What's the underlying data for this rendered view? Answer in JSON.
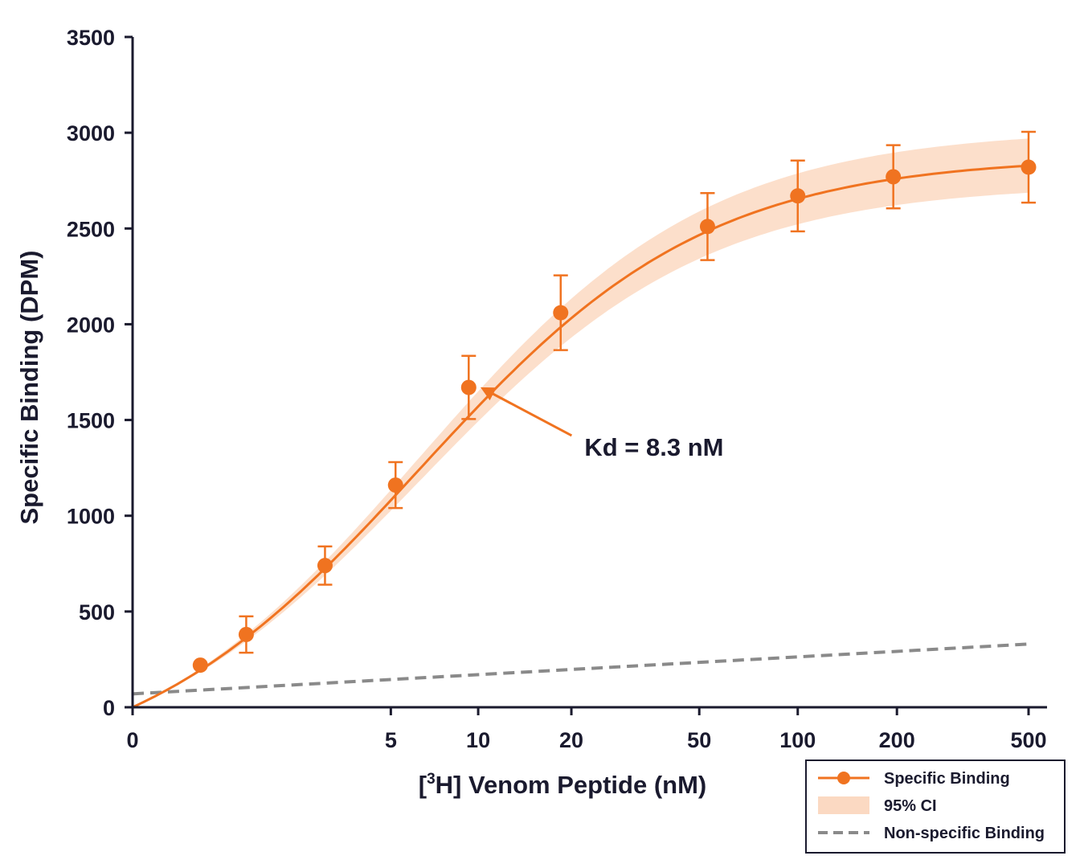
{
  "chart_data": {
    "type": "scatter",
    "xlabel_prefix": "[",
    "xlabel_sup": "3",
    "xlabel_rest": "H] Venom Peptide (nM)",
    "ylabel": "Specific Binding (DPM)",
    "x_scale": "log1p",
    "x_ticks": [
      0,
      5,
      10,
      20,
      50,
      100,
      200,
      500
    ],
    "x_tick_labels": [
      "0",
      "5",
      "10",
      "20",
      "50",
      "100",
      "200",
      "500"
    ],
    "ylim": [
      0,
      3500
    ],
    "y_ticks": [
      0,
      500,
      1000,
      1500,
      2000,
      2500,
      3000,
      3500
    ],
    "y_tick_labels": [
      "0",
      "500",
      "1000",
      "1500",
      "2000",
      "2500",
      "3000",
      "3500"
    ],
    "grid": false,
    "series": [
      {
        "name": "Specific Binding",
        "kind": "points+fit",
        "color": "#f07320",
        "x": [
          0.6,
          1.2,
          2.8,
          5.2,
          9.3,
          18.5,
          53,
          100,
          195,
          500
        ],
        "y": [
          220,
          380,
          740,
          1160,
          1670,
          2060,
          2510,
          2670,
          2770,
          2820
        ],
        "err": [
          0,
          95,
          100,
          120,
          165,
          195,
          175,
          185,
          165,
          185
        ],
        "fit": {
          "model": "one-site",
          "bmax": 2875,
          "kd": 8.3
        }
      },
      {
        "name": "95% CI",
        "kind": "band",
        "color": "#fbd9c2",
        "half_width_fraction": 0.05
      },
      {
        "name": "Non-specific Binding",
        "kind": "line",
        "color": "#8a8a8a",
        "dash": true,
        "x": [
          0,
          500
        ],
        "y": [
          70,
          330
        ]
      }
    ],
    "annotations": [
      {
        "text": "Kd = 8.3 nM",
        "x": 22,
        "y": 1360,
        "arrow_to": {
          "x": 10,
          "y": 1580
        }
      }
    ],
    "legend": {
      "position": "bottom-right",
      "entries": [
        "Specific Binding",
        "95% CI",
        "Non-specific Binding"
      ]
    }
  }
}
